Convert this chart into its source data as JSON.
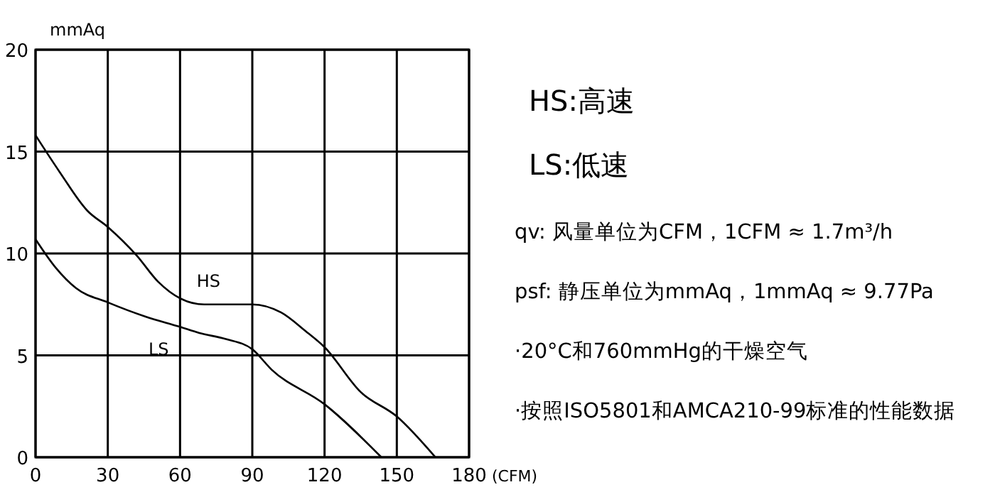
{
  "chart_data": {
    "type": "line",
    "xlabel": "(CFM)",
    "ylabel": "mmAq",
    "xlim": [
      0,
      180
    ],
    "ylim": [
      0,
      20
    ],
    "xticks": [
      0,
      30,
      60,
      90,
      120,
      150,
      180
    ],
    "yticks": [
      0,
      5,
      10,
      15,
      20
    ],
    "grid": true,
    "marker": "none",
    "line_style": "solid",
    "series": [
      {
        "name": "HS",
        "color": "#000000",
        "x": [
          0,
          10,
          21.5,
          30,
          42,
          51,
          60,
          70,
          90,
          102,
          112,
          120,
          135,
          150,
          166
        ],
        "values": [
          15.8,
          14,
          12.1,
          11.3,
          9.9,
          8.6,
          7.8,
          7.5,
          7.5,
          7.1,
          6.2,
          5.4,
          3.2,
          2,
          0
        ]
      },
      {
        "name": "LS",
        "color": "#000000",
        "x": [
          0,
          8.4,
          16.8,
          30,
          45.7,
          60,
          68,
          79,
          90,
          98,
          120,
          143.6
        ],
        "values": [
          10.7,
          9.3,
          8.3,
          7.6,
          6.9,
          6.4,
          6.1,
          5.8,
          5.3,
          4.3,
          2.6,
          0
        ]
      }
    ],
    "annotations": [
      "HS:高速",
      "LS:低速",
      "qv: 风量单位为CFM，1CFM ≈ 1.7m³/h",
      "psf: 静压单位为mmAq，1mmAq ≈ 9.77Pa",
      "·20°C和760mmHg的干燥空气",
      "·按照ISO5801和AMCA210-99标准的性能数据"
    ]
  }
}
